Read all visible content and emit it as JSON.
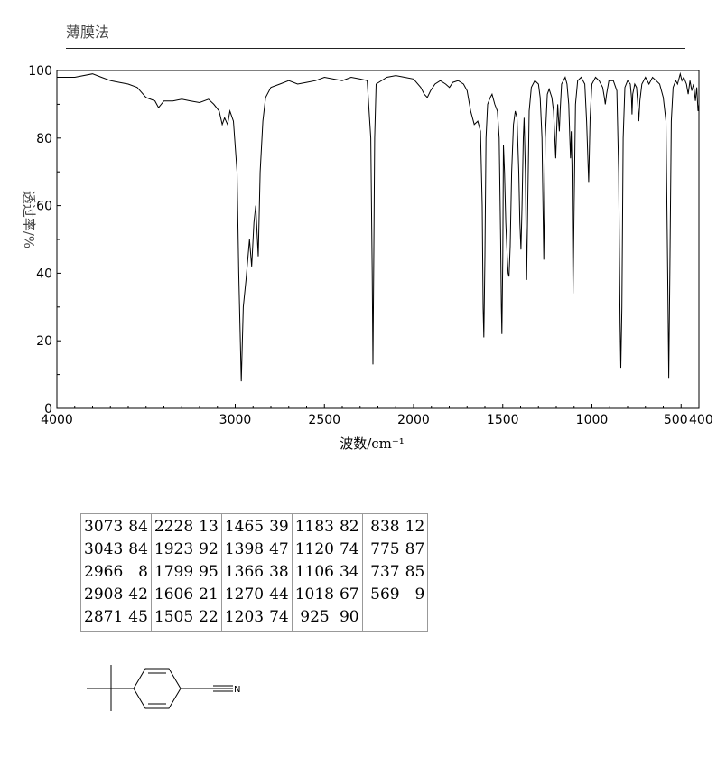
{
  "page": {
    "title": "薄膜法"
  },
  "chart_data": {
    "type": "line",
    "title": "",
    "xlabel": "波数/cm⁻¹",
    "ylabel": "透过率/%",
    "xlim": [
      4000,
      400
    ],
    "ylim": [
      0,
      100
    ],
    "x_ticks": [
      "4000",
      "3000",
      "2500",
      "2000",
      "1500",
      "1000",
      "500",
      "400"
    ],
    "x_tick_values": [
      4000,
      3000,
      2500,
      2000,
      1500,
      1000,
      500,
      400
    ],
    "y_ticks": [
      "0",
      "20",
      "40",
      "60",
      "80",
      "100"
    ],
    "y_tick_values": [
      0,
      20,
      40,
      60,
      80,
      100
    ],
    "series": [
      {
        "values": [
          [
            4000,
            98
          ],
          [
            3900,
            98
          ],
          [
            3800,
            99
          ],
          [
            3750,
            98
          ],
          [
            3700,
            97
          ],
          [
            3650,
            96.5
          ],
          [
            3600,
            96
          ],
          [
            3550,
            95
          ],
          [
            3500,
            92
          ],
          [
            3450,
            91
          ],
          [
            3430,
            89
          ],
          [
            3400,
            91
          ],
          [
            3350,
            91
          ],
          [
            3300,
            91.5
          ],
          [
            3250,
            91
          ],
          [
            3200,
            90.5
          ],
          [
            3150,
            91.5
          ],
          [
            3120,
            90
          ],
          [
            3090,
            88
          ],
          [
            3073,
            84
          ],
          [
            3060,
            86
          ],
          [
            3043,
            84
          ],
          [
            3030,
            88
          ],
          [
            3010,
            85
          ],
          [
            2990,
            70
          ],
          [
            2980,
            40
          ],
          [
            2966,
            8
          ],
          [
            2955,
            30
          ],
          [
            2940,
            38
          ],
          [
            2920,
            50
          ],
          [
            2908,
            42
          ],
          [
            2895,
            55
          ],
          [
            2885,
            60
          ],
          [
            2871,
            45
          ],
          [
            2860,
            70
          ],
          [
            2845,
            85
          ],
          [
            2830,
            92
          ],
          [
            2800,
            95
          ],
          [
            2750,
            96
          ],
          [
            2700,
            97
          ],
          [
            2650,
            96
          ],
          [
            2600,
            96.5
          ],
          [
            2550,
            97
          ],
          [
            2500,
            98
          ],
          [
            2450,
            97.5
          ],
          [
            2400,
            97
          ],
          [
            2350,
            98
          ],
          [
            2300,
            97.5
          ],
          [
            2260,
            97
          ],
          [
            2240,
            80
          ],
          [
            2232,
            40
          ],
          [
            2228,
            13
          ],
          [
            2224,
            40
          ],
          [
            2218,
            80
          ],
          [
            2210,
            96
          ],
          [
            2150,
            98
          ],
          [
            2100,
            98.5
          ],
          [
            2050,
            98
          ],
          [
            2000,
            97.5
          ],
          [
            1960,
            95
          ],
          [
            1940,
            93
          ],
          [
            1923,
            92
          ],
          [
            1905,
            94
          ],
          [
            1880,
            96
          ],
          [
            1850,
            97
          ],
          [
            1820,
            96
          ],
          [
            1799,
            95
          ],
          [
            1780,
            96.5
          ],
          [
            1750,
            97
          ],
          [
            1720,
            96
          ],
          [
            1700,
            94
          ],
          [
            1680,
            88
          ],
          [
            1660,
            84
          ],
          [
            1640,
            85
          ],
          [
            1625,
            82
          ],
          [
            1615,
            60
          ],
          [
            1610,
            30
          ],
          [
            1606,
            21
          ],
          [
            1600,
            45
          ],
          [
            1594,
            80
          ],
          [
            1585,
            90
          ],
          [
            1570,
            92
          ],
          [
            1560,
            93
          ],
          [
            1545,
            90
          ],
          [
            1530,
            88
          ],
          [
            1520,
            80
          ],
          [
            1512,
            50
          ],
          [
            1508,
            30
          ],
          [
            1505,
            22
          ],
          [
            1500,
            45
          ],
          [
            1496,
            78
          ],
          [
            1490,
            70
          ],
          [
            1483,
            55
          ],
          [
            1475,
            45
          ],
          [
            1470,
            40
          ],
          [
            1465,
            39
          ],
          [
            1458,
            48
          ],
          [
            1450,
            70
          ],
          [
            1440,
            84
          ],
          [
            1430,
            88
          ],
          [
            1420,
            86
          ],
          [
            1410,
            70
          ],
          [
            1404,
            55
          ],
          [
            1398,
            47
          ],
          [
            1392,
            60
          ],
          [
            1385,
            80
          ],
          [
            1380,
            86
          ],
          [
            1373,
            70
          ],
          [
            1366,
            38
          ],
          [
            1360,
            60
          ],
          [
            1352,
            88
          ],
          [
            1340,
            95
          ],
          [
            1320,
            97
          ],
          [
            1300,
            96
          ],
          [
            1290,
            92
          ],
          [
            1280,
            80
          ],
          [
            1270,
            44
          ],
          [
            1262,
            80
          ],
          [
            1250,
            93
          ],
          [
            1240,
            94.5
          ],
          [
            1225,
            92
          ],
          [
            1215,
            88
          ],
          [
            1208,
            80
          ],
          [
            1203,
            74
          ],
          [
            1198,
            82
          ],
          [
            1192,
            90
          ],
          [
            1188,
            86
          ],
          [
            1183,
            82
          ],
          [
            1178,
            88
          ],
          [
            1170,
            96
          ],
          [
            1150,
            98
          ],
          [
            1140,
            96
          ],
          [
            1130,
            90
          ],
          [
            1124,
            80
          ],
          [
            1120,
            74
          ],
          [
            1116,
            82
          ],
          [
            1112,
            72
          ],
          [
            1106,
            34
          ],
          [
            1100,
            60
          ],
          [
            1092,
            90
          ],
          [
            1080,
            97
          ],
          [
            1060,
            98
          ],
          [
            1040,
            96
          ],
          [
            1030,
            85
          ],
          [
            1018,
            67
          ],
          [
            1010,
            86
          ],
          [
            1000,
            96
          ],
          [
            980,
            98
          ],
          [
            960,
            97
          ],
          [
            940,
            95
          ],
          [
            930,
            92
          ],
          [
            925,
            90
          ],
          [
            918,
            93
          ],
          [
            905,
            97
          ],
          [
            880,
            97
          ],
          [
            860,
            94
          ],
          [
            850,
            70
          ],
          [
            842,
            25
          ],
          [
            838,
            12
          ],
          [
            832,
            30
          ],
          [
            825,
            80
          ],
          [
            815,
            95
          ],
          [
            800,
            97
          ],
          [
            785,
            96
          ],
          [
            778,
            92
          ],
          [
            775,
            87
          ],
          [
            771,
            93
          ],
          [
            760,
            96
          ],
          [
            750,
            95
          ],
          [
            743,
            90
          ],
          [
            737,
            85
          ],
          [
            731,
            91
          ],
          [
            720,
            96
          ],
          [
            700,
            98
          ],
          [
            680,
            96
          ],
          [
            660,
            98
          ],
          [
            640,
            97
          ],
          [
            620,
            96
          ],
          [
            600,
            92
          ],
          [
            585,
            85
          ],
          [
            575,
            40
          ],
          [
            569,
            9
          ],
          [
            563,
            40
          ],
          [
            555,
            85
          ],
          [
            545,
            95
          ],
          [
            530,
            97
          ],
          [
            520,
            96
          ],
          [
            505,
            99
          ],
          [
            495,
            97
          ],
          [
            485,
            98
          ],
          [
            470,
            96
          ],
          [
            460,
            93
          ],
          [
            450,
            97
          ],
          [
            440,
            94
          ],
          [
            430,
            96
          ],
          [
            420,
            91
          ],
          [
            412,
            95
          ],
          [
            405,
            88
          ],
          [
            400,
            90
          ]
        ]
      }
    ]
  },
  "peaks": [
    [
      "3073",
      "84"
    ],
    [
      "3043",
      "84"
    ],
    [
      "2966",
      "8"
    ],
    [
      "2908",
      "42"
    ],
    [
      "2871",
      "45"
    ],
    [
      "2228",
      "13"
    ],
    [
      "1923",
      "92"
    ],
    [
      "1799",
      "95"
    ],
    [
      "1606",
      "21"
    ],
    [
      "1505",
      "22"
    ],
    [
      "1465",
      "39"
    ],
    [
      "1398",
      "47"
    ],
    [
      "1366",
      "38"
    ],
    [
      "1270",
      "44"
    ],
    [
      "1203",
      "74"
    ],
    [
      "1183",
      "82"
    ],
    [
      "1120",
      "74"
    ],
    [
      "1106",
      "34"
    ],
    [
      "1018",
      "67"
    ],
    [
      "925",
      "90"
    ],
    [
      "838",
      "12"
    ],
    [
      "775",
      "87"
    ],
    [
      "737",
      "85"
    ],
    [
      "569",
      "9"
    ]
  ],
  "structure": {
    "atom_label": "N"
  },
  "colors": {
    "line": "#000000",
    "axis": "#000000",
    "label": "#444444"
  }
}
